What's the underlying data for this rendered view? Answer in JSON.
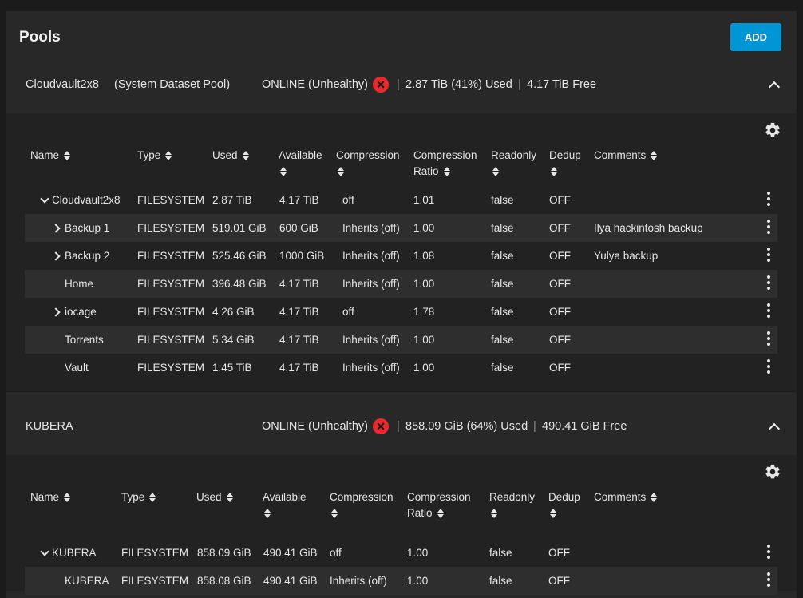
{
  "page": {
    "title": "Pools",
    "add_label": "ADD"
  },
  "pools": [
    {
      "name": "Cloudvault2x8",
      "tag": "(System Dataset Pool)",
      "status": "ONLINE (Unhealthy)",
      "used": "2.87 TiB (41%) Used",
      "free": "4.17 TiB Free",
      "columns": [
        "Name",
        "Type",
        "Used",
        "Available",
        "Compression",
        "Compression Ratio",
        "Readonly",
        "Dedup",
        "Comments"
      ],
      "rows": [
        {
          "name": "Cloudvault2x8",
          "type": "FILESYSTEM",
          "used": "2.87 TiB",
          "available": "4.17 TiB",
          "compression": "off",
          "ratio": "1.01",
          "readonly": "false",
          "dedup": "OFF",
          "comments": "",
          "expander": "down"
        },
        {
          "name": "Backup 1",
          "type": "FILESYSTEM",
          "used": "519.01 GiB",
          "available": "600 GiB",
          "compression": "Inherits (off)",
          "ratio": "1.00",
          "readonly": "false",
          "dedup": "OFF",
          "comments": "Ilya hackintosh backup",
          "expander": "right"
        },
        {
          "name": "Backup 2",
          "type": "FILESYSTEM",
          "used": "525.46 GiB",
          "available": "1000 GiB",
          "compression": "Inherits (off)",
          "ratio": "1.08",
          "readonly": "false",
          "dedup": "OFF",
          "comments": "Yulya backup",
          "expander": "right"
        },
        {
          "name": "Home",
          "type": "FILESYSTEM",
          "used": "396.48 GiB",
          "available": "4.17 TiB",
          "compression": "Inherits (off)",
          "ratio": "1.00",
          "readonly": "false",
          "dedup": "OFF",
          "comments": "",
          "expander": "none"
        },
        {
          "name": "iocage",
          "type": "FILESYSTEM",
          "used": "4.26 GiB",
          "available": "4.17 TiB",
          "compression": "off",
          "ratio": "1.78",
          "readonly": "false",
          "dedup": "OFF",
          "comments": "",
          "expander": "right"
        },
        {
          "name": "Torrents",
          "type": "FILESYSTEM",
          "used": "5.34 GiB",
          "available": "4.17 TiB",
          "compression": "Inherits (off)",
          "ratio": "1.00",
          "readonly": "false",
          "dedup": "OFF",
          "comments": "",
          "expander": "none"
        },
        {
          "name": "Vault",
          "type": "FILESYSTEM",
          "used": "1.45 TiB",
          "available": "4.17 TiB",
          "compression": "Inherits (off)",
          "ratio": "1.00",
          "readonly": "false",
          "dedup": "OFF",
          "comments": "",
          "expander": "none"
        }
      ]
    },
    {
      "name": "KUBERA",
      "tag": "",
      "status": "ONLINE (Unhealthy)",
      "used": "858.09 GiB (64%) Used",
      "free": "490.41 GiB Free",
      "columns": [
        "Name",
        "Type",
        "Used",
        "Available",
        "Compression",
        "Compression Ratio",
        "Readonly",
        "Dedup",
        "Comments"
      ],
      "rows": [
        {
          "name": "KUBERA",
          "type": "FILESYSTEM",
          "used": "858.09 GiB",
          "available": "490.41 GiB",
          "compression": "off",
          "ratio": "1.00",
          "readonly": "false",
          "dedup": "OFF",
          "comments": "",
          "expander": "down"
        },
        {
          "name": "KUBERA",
          "type": "FILESYSTEM",
          "used": "858.08 GiB",
          "available": "490.41 GiB",
          "compression": "Inherits (off)",
          "ratio": "1.00",
          "readonly": "false",
          "dedup": "OFF",
          "comments": "",
          "expander": "none"
        }
      ]
    }
  ],
  "icons": {
    "error": "error-circle-icon",
    "gear": "gear-icon",
    "menu": "more-vert-icon"
  },
  "colors": {
    "accent": "#0095d5",
    "error": "#e8292e"
  }
}
